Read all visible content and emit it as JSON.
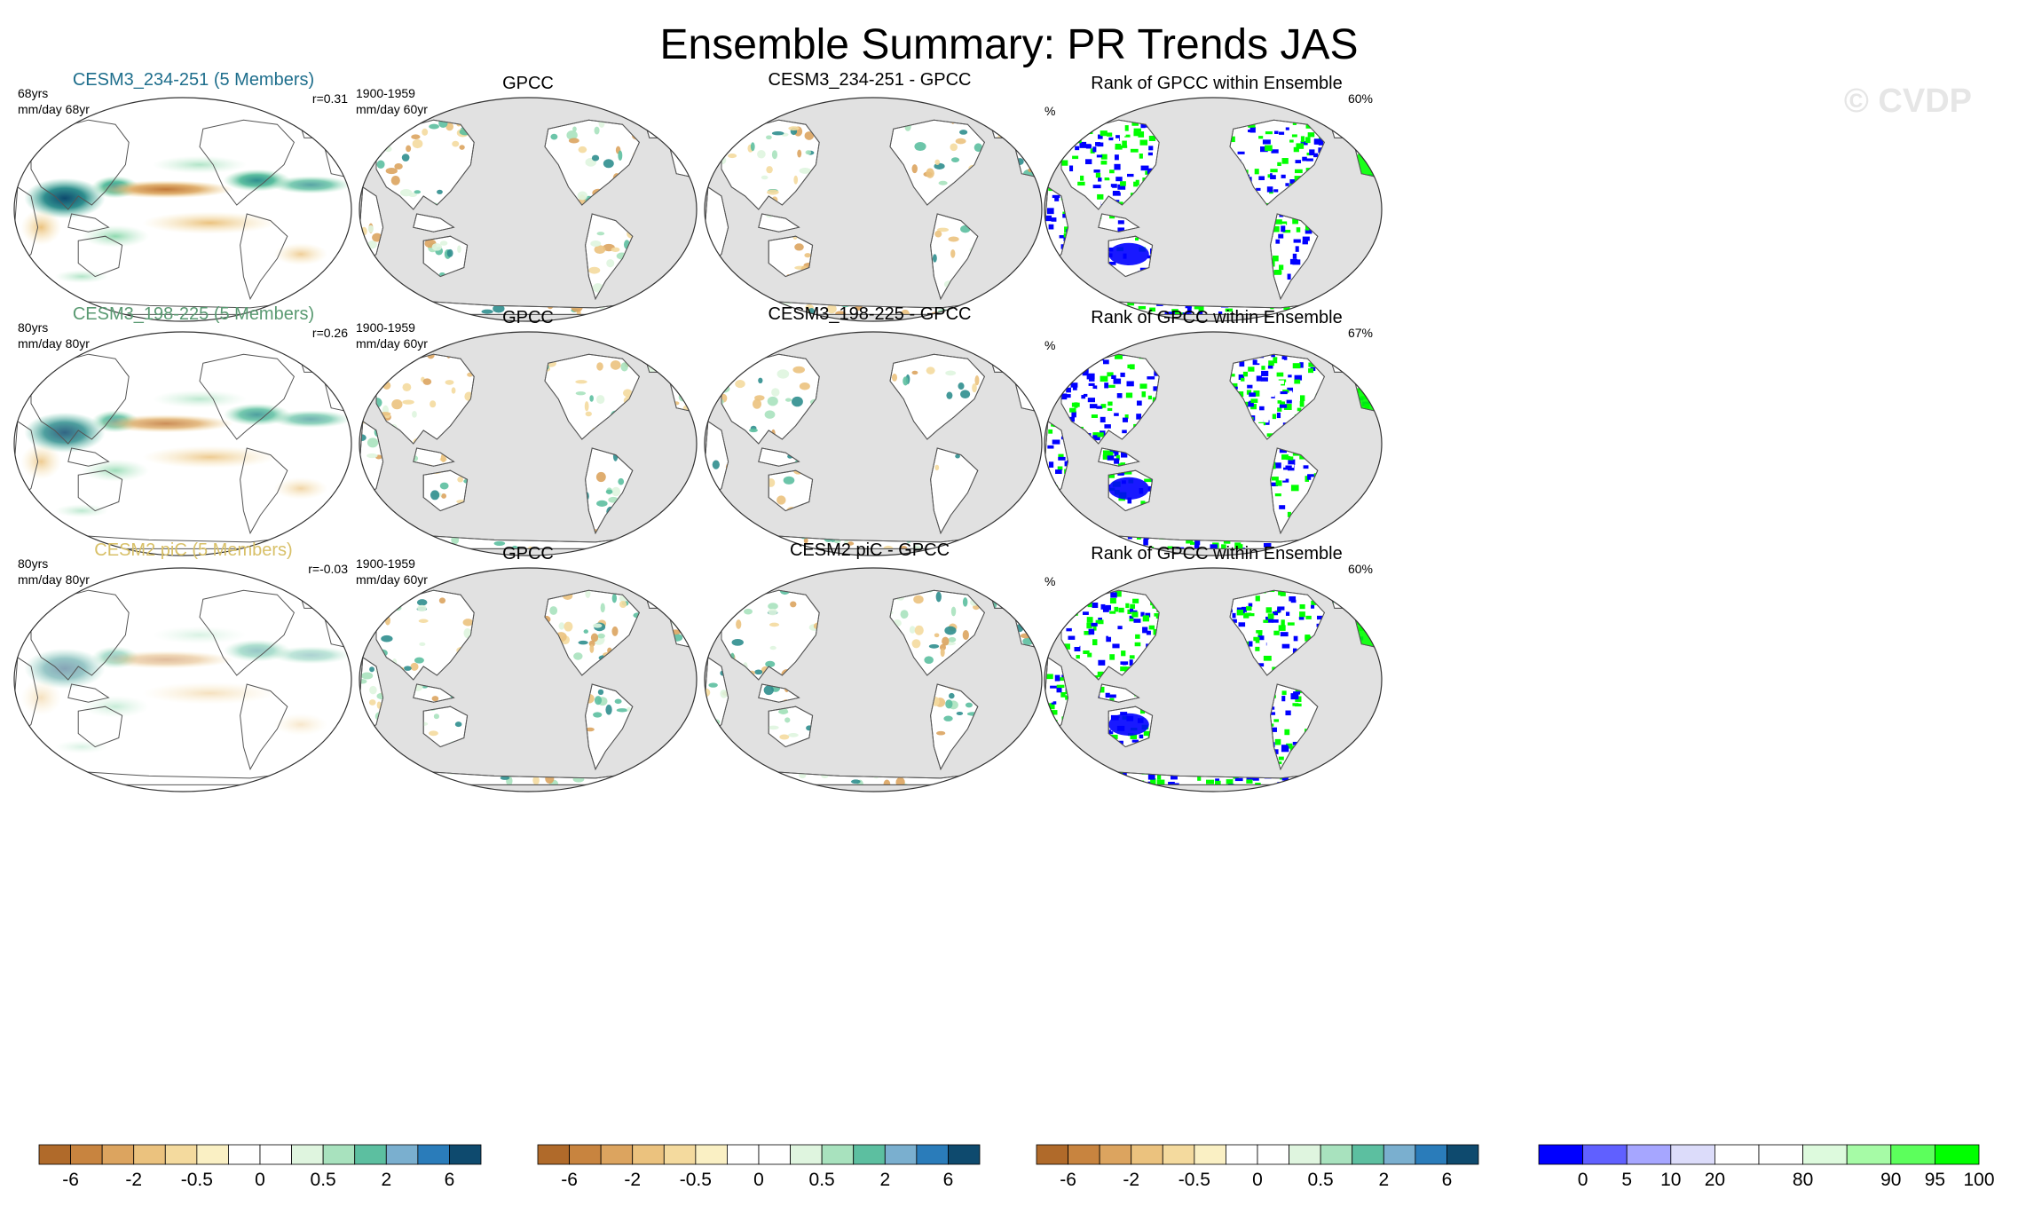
{
  "title": "Ensemble Summary: PR Trends JAS",
  "watermark": "© CVDP",
  "colors": {
    "ocean_gray": "#e1e1e1",
    "coast": "#555555",
    "model_label_colors": [
      "#1e6e8c",
      "#5a9a72",
      "#d8c068"
    ],
    "rank_low": "#0000ff",
    "rank_high": "#00ff00"
  },
  "rows": [
    {
      "model_title": "CESM3_234-251 (5 Members)",
      "model_years": "68yrs",
      "model_units": "mm/day 68yr",
      "model_r": "r=0.31",
      "obs_title": "GPCC",
      "obs_years": "1900-1959",
      "obs_units": "mm/day 60yr",
      "diff_title": "CESM3_234-251 - GPCC",
      "rank_title": "Rank of GPCC within Ensemble",
      "rank_units": "%",
      "rank_pct": "60%"
    },
    {
      "model_title": "CESM3_198-225 (5 Members)",
      "model_years": "80yrs",
      "model_units": "mm/day 80yr",
      "model_r": "r=0.26",
      "obs_title": "GPCC",
      "obs_years": "1900-1959",
      "obs_units": "mm/day 60yr",
      "diff_title": "CESM3_198-225 - GPCC",
      "rank_title": "Rank of GPCC within Ensemble",
      "rank_units": "%",
      "rank_pct": "67%"
    },
    {
      "model_title": "CESM2 piC (5 Members)",
      "model_years": "80yrs",
      "model_units": "mm/day 80yr",
      "model_r": "r=-0.03",
      "obs_title": "GPCC",
      "obs_years": "1900-1959",
      "obs_units": "mm/day 60yr",
      "diff_title": "CESM2 piC - GPCC",
      "rank_title": "Rank of GPCC within Ensemble",
      "rank_units": "%",
      "rank_pct": "60%"
    }
  ],
  "chart_data": {
    "type": "heatmap",
    "title": "Ensemble Summary: PR Trends JAS",
    "variable": "PR",
    "season": "JAS",
    "panel_columns": [
      "model ensemble mean trend",
      "GPCC",
      "model - GPCC",
      "Rank of GPCC within Ensemble"
    ],
    "trend_colorbar": {
      "units": "mm/day",
      "tick_labels": [
        "-6",
        "-2",
        "-0.5",
        "0",
        "0.5",
        "2",
        "6"
      ],
      "colors": [
        "#b06a2a",
        "#c8843f",
        "#dca45f",
        "#ebc27e",
        "#f4da9e",
        "#faf0c4",
        "#ffffff",
        "#ffffff",
        "#dff5df",
        "#a8e2be",
        "#5cbfa0",
        "#7aafcf",
        "#2a7cba",
        "#0e4a6e"
      ]
    },
    "rank_colorbar": {
      "units": "%",
      "tick_labels": [
        "0",
        "5",
        "10",
        "20",
        "80",
        "90",
        "95",
        "100"
      ],
      "colors": [
        "#0000ff",
        "#6060ff",
        "#a6a6ff",
        "#dcdcfa",
        "#ffffff",
        "#ffffff",
        "#ddfadd",
        "#a6fba6",
        "#5cff5c",
        "#00ff00"
      ]
    },
    "pattern_correlations": [
      0.31,
      0.26,
      -0.03
    ],
    "rank_percent": [
      60,
      67,
      60
    ]
  }
}
